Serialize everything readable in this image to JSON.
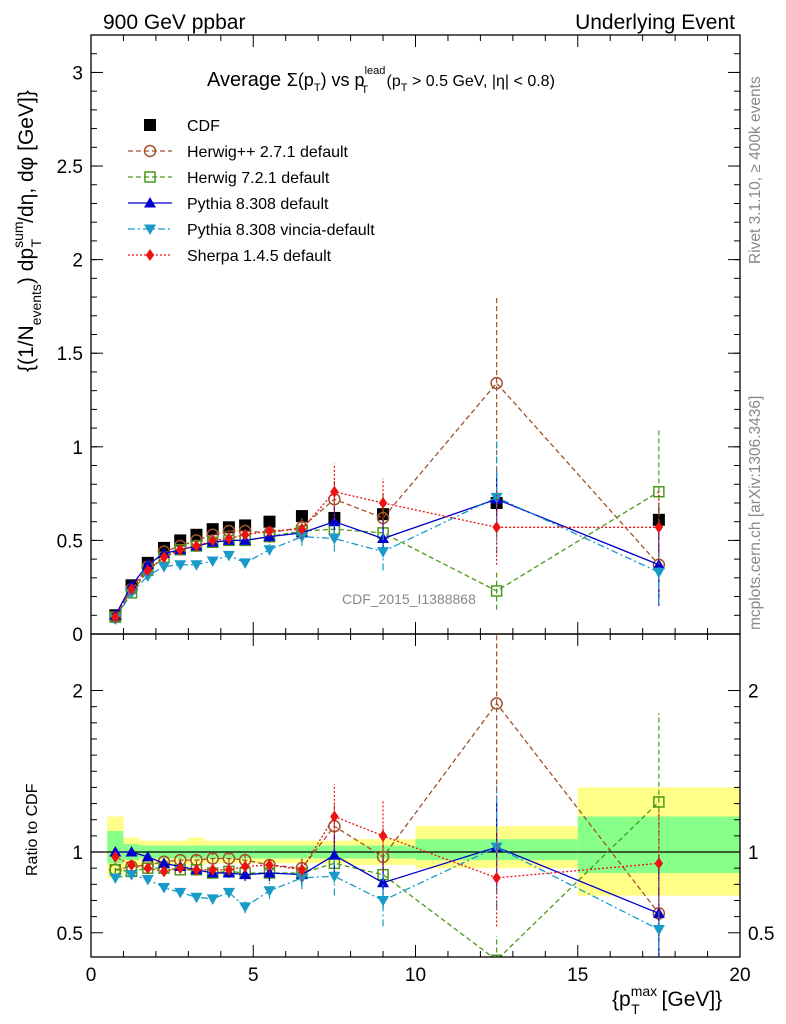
{
  "header": {
    "left": "900 GeV ppbar",
    "right": "Underlying Event"
  },
  "side_texts": {
    "rivet": "Rivet 3.1.10, ≥ 400k events",
    "mcplots": "mcplots.cern.ch [arXiv:1306.3436]"
  },
  "chart_data": [
    {
      "type": "scatter",
      "panel": "main",
      "title": "Average Σ(pT) vs pT^lead (pT > 0.5 GeV, |η| < 0.8)",
      "title_parts": {
        "a": "Average ",
        "sigma": "Σ(p",
        "sub_t": "T",
        "b": ") vs p",
        "sup_lead": "lead",
        "c": " (p",
        "d": " > 0.5 GeV, |η| < 0.8)"
      },
      "ylabel_parts": {
        "a": "{(1/N",
        "sub_events": "events",
        "b": ") dp",
        "sup_sum": "sum",
        "sub_t": "T",
        "c": "/dη, dφ [GeV]}"
      },
      "watermark": "CDF_2015_I1388868",
      "xlim": [
        0,
        20
      ],
      "ylim": [
        0,
        3.2
      ],
      "yticks": [
        0,
        0.5,
        1,
        1.5,
        2,
        2.5,
        3
      ],
      "ytick_labels": [
        "0",
        "0.5",
        "1",
        "1.5",
        "2",
        "2.5",
        "3"
      ],
      "legend_position": "top-left",
      "series": [
        {
          "name": "CDF",
          "color": "#000000",
          "marker": "square-filled",
          "line": "none",
          "x": [
            0.75,
            1.25,
            1.75,
            2.25,
            2.75,
            3.25,
            3.75,
            4.25,
            4.75,
            5.5,
            6.5,
            7.5,
            9.0,
            12.5,
            17.5
          ],
          "y": [
            0.1,
            0.26,
            0.38,
            0.46,
            0.5,
            0.53,
            0.56,
            0.57,
            0.58,
            0.6,
            0.63,
            0.62,
            0.64,
            0.7,
            0.61
          ],
          "err": [
            0.01,
            0.01,
            0.01,
            0.01,
            0.01,
            0.01,
            0.01,
            0.01,
            0.01,
            0.01,
            0.01,
            0.02,
            0.03,
            0.05,
            0.08
          ]
        },
        {
          "name": "Herwig++ 2.7.1 default",
          "color": "#a0522d",
          "marker": "circle-open",
          "line": "dashed",
          "x": [
            0.75,
            1.25,
            1.75,
            2.25,
            2.75,
            3.25,
            3.75,
            4.25,
            4.75,
            5.5,
            6.5,
            7.5,
            9.0,
            12.5,
            17.5
          ],
          "y": [
            0.09,
            0.24,
            0.36,
            0.44,
            0.47,
            0.5,
            0.53,
            0.55,
            0.55,
            0.54,
            0.57,
            0.72,
            0.62,
            1.34,
            0.37
          ],
          "err": [
            0.01,
            0.01,
            0.01,
            0.01,
            0.01,
            0.02,
            0.02,
            0.02,
            0.02,
            0.03,
            0.05,
            0.1,
            0.15,
            0.47,
            0.2
          ]
        },
        {
          "name": "Herwig 7.2.1 default",
          "color": "#4a9a1a",
          "marker": "square-open",
          "line": "dashed",
          "x": [
            0.75,
            1.25,
            1.75,
            2.25,
            2.75,
            3.25,
            3.75,
            4.25,
            4.75,
            5.5,
            6.5,
            7.5,
            9.0,
            12.5,
            17.5
          ],
          "y": [
            0.09,
            0.22,
            0.34,
            0.41,
            0.45,
            0.47,
            0.49,
            0.5,
            0.5,
            0.52,
            0.55,
            0.56,
            0.54,
            0.23,
            0.76
          ],
          "err": [
            0.01,
            0.01,
            0.01,
            0.01,
            0.01,
            0.02,
            0.02,
            0.02,
            0.02,
            0.03,
            0.05,
            0.08,
            0.12,
            0.1,
            0.34
          ]
        },
        {
          "name": "Pythia 8.308 default",
          "color": "#0000cc",
          "marker": "triangle-up",
          "line": "solid",
          "x": [
            0.75,
            1.25,
            1.75,
            2.25,
            2.75,
            3.25,
            3.75,
            4.25,
            4.75,
            5.5,
            6.5,
            7.5,
            9.0,
            12.5,
            17.5
          ],
          "y": [
            0.1,
            0.26,
            0.37,
            0.43,
            0.45,
            0.47,
            0.49,
            0.5,
            0.5,
            0.52,
            0.54,
            0.6,
            0.51,
            0.72,
            0.37
          ],
          "err": [
            0.01,
            0.01,
            0.01,
            0.01,
            0.01,
            0.02,
            0.02,
            0.02,
            0.02,
            0.03,
            0.05,
            0.08,
            0.1,
            0.15,
            0.22
          ]
        },
        {
          "name": "Pythia 8.308 vincia-default",
          "color": "#1a9ac8",
          "marker": "triangle-down",
          "line": "dashdot",
          "x": [
            0.75,
            1.25,
            1.75,
            2.25,
            2.75,
            3.25,
            3.75,
            4.25,
            4.75,
            5.5,
            6.5,
            7.5,
            9.0,
            12.5,
            17.5
          ],
          "y": [
            0.08,
            0.22,
            0.31,
            0.36,
            0.37,
            0.37,
            0.39,
            0.42,
            0.38,
            0.45,
            0.52,
            0.51,
            0.44,
            0.73,
            0.33
          ],
          "err": [
            0.01,
            0.01,
            0.01,
            0.01,
            0.01,
            0.01,
            0.02,
            0.02,
            0.02,
            0.03,
            0.05,
            0.07,
            0.1,
            0.3,
            0.17
          ]
        },
        {
          "name": "Sherpa 1.4.5 default",
          "color": "#ee1111",
          "marker": "diamond",
          "line": "dotted",
          "x": [
            0.75,
            1.25,
            1.75,
            2.25,
            2.75,
            3.25,
            3.75,
            4.25,
            4.75,
            5.5,
            6.5,
            7.5,
            9.0,
            12.5,
            17.5
          ],
          "y": [
            0.09,
            0.24,
            0.34,
            0.41,
            0.45,
            0.47,
            0.5,
            0.51,
            0.53,
            0.55,
            0.56,
            0.76,
            0.7,
            0.57,
            0.57
          ],
          "err": [
            0.01,
            0.01,
            0.01,
            0.01,
            0.01,
            0.02,
            0.02,
            0.02,
            0.02,
            0.03,
            0.05,
            0.15,
            0.13,
            0.2,
            0.2
          ]
        }
      ]
    },
    {
      "type": "scatter",
      "panel": "ratio",
      "ylabel": "Ratio to CDF",
      "xlabel_parts": {
        "a": "{p",
        "sup_max": "max",
        "sub_t": "T",
        "b": " [GeV]}"
      },
      "xlim": [
        0,
        20
      ],
      "ylim": [
        0.35,
        2.35
      ],
      "xticks": [
        0,
        5,
        10,
        15,
        20
      ],
      "xtick_labels": [
        "0",
        "5",
        "10",
        "15",
        "20"
      ],
      "yticks": [
        0.5,
        1,
        2
      ],
      "ytick_labels": [
        "0.5",
        "1",
        "2"
      ],
      "bands": [
        {
          "x0": 0.5,
          "x1": 1.0,
          "yellow": [
            0.84,
            1.22
          ],
          "green": [
            0.93,
            1.13
          ]
        },
        {
          "x0": 1.0,
          "x1": 1.5,
          "yellow": [
            0.9,
            1.09
          ],
          "green": [
            0.95,
            1.05
          ]
        },
        {
          "x0": 1.5,
          "x1": 3.0,
          "yellow": [
            0.92,
            1.07
          ],
          "green": [
            0.96,
            1.04
          ]
        },
        {
          "x0": 3.0,
          "x1": 3.5,
          "yellow": [
            0.92,
            1.09
          ],
          "green": [
            0.96,
            1.04
          ]
        },
        {
          "x0": 3.5,
          "x1": 5.0,
          "yellow": [
            0.93,
            1.07
          ],
          "green": [
            0.96,
            1.04
          ]
        },
        {
          "x0": 5.0,
          "x1": 8.0,
          "yellow": [
            0.93,
            1.07
          ],
          "green": [
            0.96,
            1.04
          ]
        },
        {
          "x0": 8.0,
          "x1": 10.0,
          "yellow": [
            0.92,
            1.08
          ],
          "green": [
            0.96,
            1.04
          ]
        },
        {
          "x0": 10.0,
          "x1": 15.0,
          "yellow": [
            0.9,
            1.16
          ],
          "green": [
            0.95,
            1.08
          ]
        },
        {
          "x0": 15.0,
          "x1": 20.0,
          "yellow": [
            0.73,
            1.4
          ],
          "green": [
            0.87,
            1.22
          ]
        }
      ],
      "series": [
        {
          "name": "Herwig++ 2.7.1 default",
          "color": "#a0522d",
          "marker": "circle-open",
          "line": "dashed",
          "x": [
            0.75,
            1.25,
            1.75,
            2.25,
            2.75,
            3.25,
            3.75,
            4.25,
            4.75,
            5.5,
            6.5,
            7.5,
            9.0,
            12.5,
            17.5
          ],
          "y": [
            0.89,
            0.91,
            0.92,
            0.94,
            0.95,
            0.95,
            0.96,
            0.96,
            0.95,
            0.92,
            0.9,
            1.16,
            0.97,
            1.92,
            0.62
          ],
          "err": [
            0.02,
            0.02,
            0.02,
            0.02,
            0.02,
            0.03,
            0.03,
            0.03,
            0.04,
            0.05,
            0.07,
            0.15,
            0.2,
            0.6,
            0.3
          ]
        },
        {
          "name": "Herwig 7.2.1 default",
          "color": "#4a9a1a",
          "marker": "square-open",
          "line": "dashed",
          "x": [
            0.75,
            1.25,
            1.75,
            2.25,
            2.75,
            3.25,
            3.75,
            4.25,
            4.75,
            5.5,
            6.5,
            7.5,
            9.0,
            12.5,
            17.5
          ],
          "y": [
            0.89,
            0.88,
            0.9,
            0.9,
            0.89,
            0.89,
            0.87,
            0.88,
            0.87,
            0.87,
            0.87,
            0.93,
            0.86,
            0.33,
            1.31
          ],
          "err": [
            0.02,
            0.02,
            0.02,
            0.02,
            0.02,
            0.03,
            0.03,
            0.03,
            0.04,
            0.05,
            0.07,
            0.12,
            0.18,
            0.15,
            0.55
          ]
        },
        {
          "name": "Pythia 8.308 default",
          "color": "#0000cc",
          "marker": "triangle-up",
          "line": "solid",
          "x": [
            0.75,
            1.25,
            1.75,
            2.25,
            2.75,
            3.25,
            3.75,
            4.25,
            4.75,
            5.5,
            6.5,
            7.5,
            9.0,
            12.5,
            17.5
          ],
          "y": [
            1.0,
            1.0,
            0.97,
            0.93,
            0.91,
            0.89,
            0.87,
            0.87,
            0.86,
            0.87,
            0.86,
            0.98,
            0.81,
            1.03,
            0.62
          ],
          "err": [
            0.02,
            0.02,
            0.02,
            0.02,
            0.02,
            0.03,
            0.03,
            0.03,
            0.04,
            0.05,
            0.07,
            0.13,
            0.16,
            0.28,
            0.35
          ]
        },
        {
          "name": "Pythia 8.308 vincia-default",
          "color": "#1a9ac8",
          "marker": "triangle-down",
          "line": "dashdot",
          "x": [
            0.75,
            1.25,
            1.75,
            2.25,
            2.75,
            3.25,
            3.75,
            4.25,
            4.75,
            5.5,
            6.5,
            7.5,
            9.0,
            12.5,
            17.5
          ],
          "y": [
            0.84,
            0.86,
            0.83,
            0.78,
            0.75,
            0.72,
            0.71,
            0.75,
            0.66,
            0.76,
            0.84,
            0.85,
            0.7,
            1.03,
            0.52
          ],
          "err": [
            0.02,
            0.02,
            0.02,
            0.02,
            0.02,
            0.03,
            0.03,
            0.03,
            0.04,
            0.05,
            0.07,
            0.12,
            0.16,
            0.38,
            0.3
          ]
        },
        {
          "name": "Sherpa 1.4.5 default",
          "color": "#ee1111",
          "marker": "diamond",
          "line": "dotted",
          "x": [
            0.75,
            1.25,
            1.75,
            2.25,
            2.75,
            3.25,
            3.75,
            4.25,
            4.75,
            5.5,
            6.5,
            7.5,
            9.0,
            12.5,
            17.5
          ],
          "y": [
            0.97,
            0.92,
            0.9,
            0.88,
            0.9,
            0.89,
            0.89,
            0.89,
            0.91,
            0.92,
            0.89,
            1.22,
            1.1,
            0.84,
            0.93
          ],
          "err": [
            0.02,
            0.02,
            0.02,
            0.02,
            0.02,
            0.03,
            0.03,
            0.03,
            0.04,
            0.05,
            0.07,
            0.2,
            0.22,
            0.3,
            0.33
          ]
        }
      ]
    }
  ]
}
